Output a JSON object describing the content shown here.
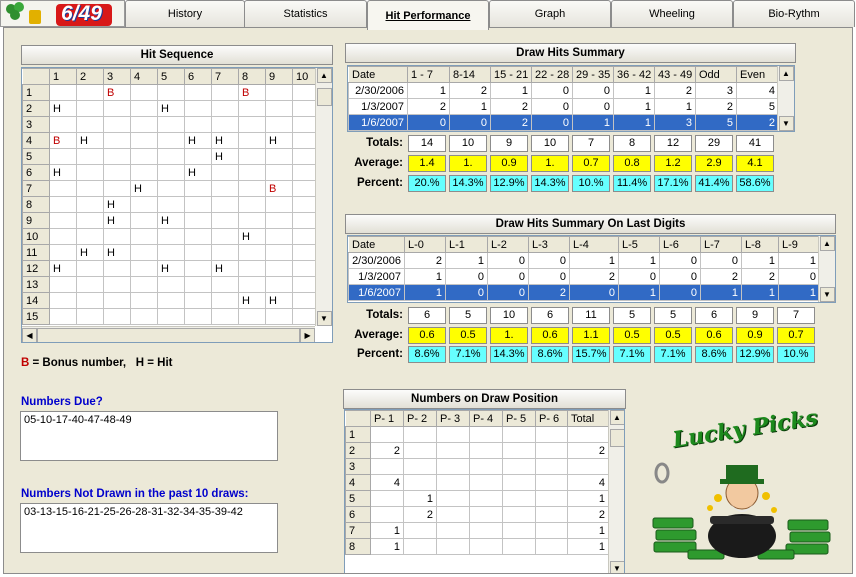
{
  "logo": {
    "text": "6/49"
  },
  "tabs": [
    "History",
    "Statistics",
    "Hit Performance",
    "Graph",
    "Wheeling",
    "Bio-Rythm"
  ],
  "hit_sequence": {
    "title": "Hit Sequence",
    "columns": [
      "1",
      "2",
      "3",
      "4",
      "5",
      "6",
      "7",
      "8",
      "9",
      "10"
    ],
    "rows": [
      [
        "1",
        "",
        "",
        "B",
        "",
        "",
        "",
        "",
        "B",
        "",
        ""
      ],
      [
        "2",
        "H",
        "",
        "",
        "",
        "H",
        "",
        "",
        "",
        "",
        ""
      ],
      [
        "3",
        "",
        "",
        "",
        "",
        "",
        "",
        "",
        "",
        "",
        ""
      ],
      [
        "4",
        "B",
        "H",
        "",
        "",
        "",
        "H",
        "H",
        "",
        "H",
        ""
      ],
      [
        "5",
        "",
        "",
        "",
        "",
        "",
        "",
        "H",
        "",
        "",
        ""
      ],
      [
        "6",
        "H",
        "",
        "",
        "",
        "",
        "H",
        "",
        "",
        "",
        ""
      ],
      [
        "7",
        "",
        "",
        "",
        "H",
        "",
        "",
        "",
        "",
        "B",
        ""
      ],
      [
        "8",
        "",
        "",
        "H",
        "",
        "",
        "",
        "",
        "",
        "",
        ""
      ],
      [
        "9",
        "",
        "",
        "H",
        "",
        "H",
        "",
        "",
        "",
        "",
        ""
      ],
      [
        "10",
        "",
        "",
        "",
        "",
        "",
        "",
        "",
        "H",
        "",
        ""
      ],
      [
        "11",
        "",
        "H",
        "H",
        "",
        "",
        "",
        "",
        "",
        "",
        ""
      ],
      [
        "12",
        "H",
        "",
        "",
        "",
        "H",
        "",
        "H",
        "",
        "",
        ""
      ],
      [
        "13",
        "",
        "",
        "",
        "",
        "",
        "",
        "",
        "",
        "",
        ""
      ],
      [
        "14",
        "",
        "",
        "",
        "",
        "",
        "",
        "",
        "H",
        "H",
        ""
      ],
      [
        "15",
        "",
        "",
        "",
        "",
        "",
        "",
        "",
        "",
        "",
        ""
      ]
    ],
    "legend_b": "B",
    "legend_text1": " = Bonus number,   ",
    "legend_h": "H",
    "legend_text2": " = Hit"
  },
  "draw_hits": {
    "title": "Draw Hits Summary",
    "columns": [
      "Date",
      "1 - 7",
      "8-14",
      "15 - 21",
      "22 - 28",
      "29 - 35",
      "36 - 42",
      "43 - 49",
      "Odd",
      "Even"
    ],
    "rows": [
      [
        "2/30/2006",
        "1",
        "2",
        "1",
        "0",
        "0",
        "1",
        "2",
        "3",
        "4"
      ],
      [
        "1/3/2007",
        "2",
        "1",
        "2",
        "0",
        "0",
        "1",
        "1",
        "2",
        "5"
      ],
      [
        "1/6/2007",
        "0",
        "0",
        "2",
        "0",
        "1",
        "1",
        "3",
        "5",
        "2"
      ]
    ],
    "totals_label": "Totals:",
    "average_label": "Average:",
    "percent_label": "Percent:",
    "totals": [
      "14",
      "10",
      "9",
      "10",
      "7",
      "8",
      "12",
      "29",
      "41"
    ],
    "average": [
      "1.4",
      "1.",
      "0.9",
      "1.",
      "0.7",
      "0.8",
      "1.2",
      "2.9",
      "4.1"
    ],
    "percent": [
      "20.%",
      "14.3%",
      "12.9%",
      "14.3%",
      "10.%",
      "11.4%",
      "17.1%",
      "41.4%",
      "58.6%"
    ]
  },
  "last_digits": {
    "title": "Draw Hits Summary On Last Digits",
    "columns": [
      "Date",
      "L-0",
      "L-1",
      "L-2",
      "L-3",
      "L-4",
      "L-5",
      "L-6",
      "L-7",
      "L-8",
      "L-9"
    ],
    "rows": [
      [
        "2/30/2006",
        "2",
        "1",
        "0",
        "0",
        "1",
        "1",
        "0",
        "0",
        "1",
        "1"
      ],
      [
        "1/3/2007",
        "1",
        "0",
        "0",
        "0",
        "2",
        "0",
        "0",
        "2",
        "2",
        "0"
      ],
      [
        "1/6/2007",
        "1",
        "0",
        "0",
        "2",
        "0",
        "1",
        "0",
        "1",
        "1",
        "1"
      ]
    ],
    "totals_label": "Totals:",
    "average_label": "Average:",
    "percent_label": "Percent:",
    "totals": [
      "6",
      "5",
      "10",
      "6",
      "11",
      "5",
      "5",
      "6",
      "9",
      "7"
    ],
    "average": [
      "0.6",
      "0.5",
      "1.",
      "0.6",
      "1.1",
      "0.5",
      "0.5",
      "0.6",
      "0.9",
      "0.7"
    ],
    "percent": [
      "8.6%",
      "7.1%",
      "14.3%",
      "8.6%",
      "15.7%",
      "7.1%",
      "7.1%",
      "8.6%",
      "12.9%",
      "10.%"
    ]
  },
  "draw_position": {
    "title": "Numbers on Draw Position",
    "columns": [
      "",
      "P- 1",
      "P- 2",
      "P- 3",
      "P- 4",
      "P- 5",
      "P- 6",
      "Total"
    ],
    "rows": [
      [
        "1",
        "",
        "",
        "",
        "",
        "",
        "",
        ""
      ],
      [
        "2",
        "2",
        "",
        "",
        "",
        "",
        "",
        "2"
      ],
      [
        "3",
        "",
        "",
        "",
        "",
        "",
        "",
        ""
      ],
      [
        "4",
        "4",
        "",
        "",
        "",
        "",
        "",
        "4"
      ],
      [
        "5",
        "",
        "1",
        "",
        "",
        "",
        "",
        "1"
      ],
      [
        "6",
        "",
        "2",
        "",
        "",
        "",
        "",
        "2"
      ],
      [
        "7",
        "1",
        "",
        "",
        "",
        "",
        "",
        "1"
      ],
      [
        "8",
        "1",
        "",
        "",
        "",
        "",
        "",
        "1"
      ]
    ]
  },
  "numbers_due": {
    "label": "Numbers Due?",
    "value": "05-10-17-40-47-48-49"
  },
  "not_drawn": {
    "label": "Numbers Not Drawn in the past 10 draws:",
    "value": "03-13-15-16-21-25-26-28-31-32-34-35-39-42"
  },
  "lucky": {
    "text": "Lucky Picks"
  },
  "colors": {
    "blue_label": "#0000cc",
    "selected_row": "#316ac5",
    "average_fill": "#ffff00",
    "percent_fill": "#66ffff",
    "bonus_red": "#c00000"
  }
}
